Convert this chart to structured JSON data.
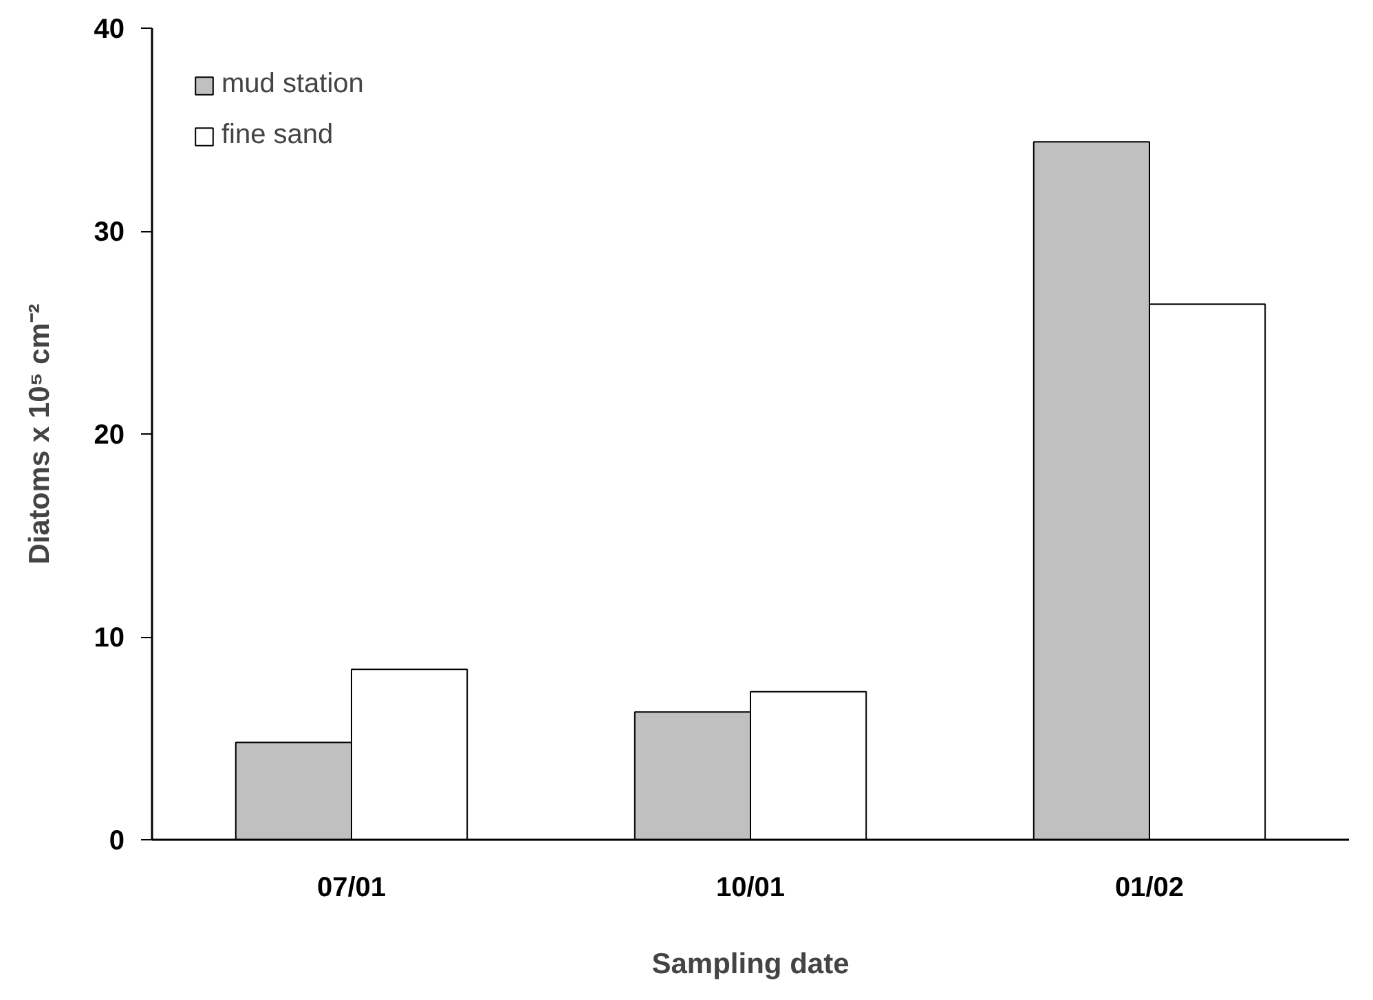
{
  "chart_data": {
    "type": "bar",
    "xlabel": "Sampling date",
    "ylabel": "Diatoms x 10⁵ cm⁻²",
    "categories": [
      "07/01",
      "10/01",
      "01/02"
    ],
    "series": [
      {
        "name": "mud station",
        "color": "#c0c0c0",
        "values": [
          4.8,
          6.3,
          34.4
        ]
      },
      {
        "name": "fine sand",
        "color": "#ffffff",
        "values": [
          8.4,
          7.3,
          26.4
        ]
      }
    ],
    "ylim": [
      0,
      40
    ],
    "yticks": [
      0,
      10,
      20,
      30,
      40
    ],
    "grid": false,
    "legend": "top left"
  }
}
